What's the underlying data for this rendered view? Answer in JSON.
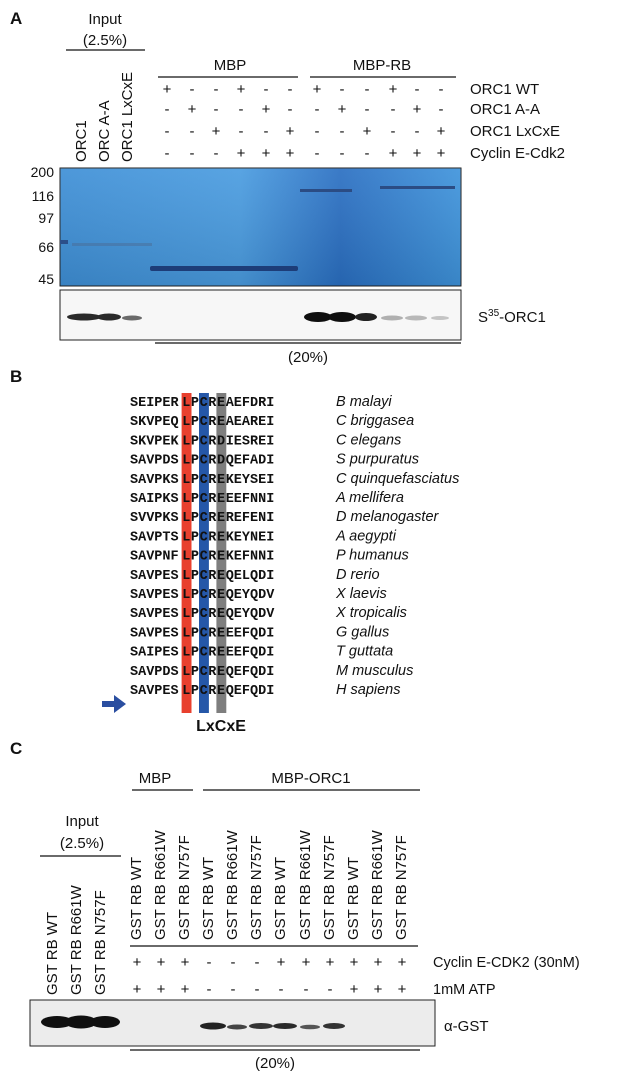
{
  "panelA": {
    "panel_label": "A",
    "input_label": "Input",
    "input_pct": "(2.5%)",
    "lanes_input": [
      "ORC1",
      "ORC A-A",
      "ORC1 LxCxE"
    ],
    "group_mbp": "MBP",
    "group_mbp_rb": "MBP-RB",
    "row_labels": [
      "ORC1 WT",
      "ORC1 A-A",
      "ORC1 LxCxE",
      "Cyclin E-Cdk2"
    ],
    "signs": [
      [
        "+",
        "-",
        "-",
        "+",
        "-",
        "-",
        "+",
        "-",
        "-",
        "+",
        "-",
        "-"
      ],
      [
        "-",
        "+",
        "-",
        "-",
        "+",
        "-",
        "-",
        "+",
        "-",
        "-",
        "+",
        "-"
      ],
      [
        "-",
        "-",
        "+",
        "-",
        "-",
        "+",
        "-",
        "-",
        "+",
        "-",
        "-",
        "+"
      ],
      [
        "-",
        "-",
        "-",
        "+",
        "+",
        "+",
        "-",
        "-",
        "-",
        "+",
        "+",
        "+"
      ]
    ],
    "mw_markers": [
      "200",
      "116",
      "97",
      "66",
      "45"
    ],
    "autorad_label_prefix": "S",
    "autorad_label_sup": "35",
    "autorad_label_suffix": "-ORC1",
    "pct_label": "(20%)"
  },
  "panelB": {
    "panel_label": "B",
    "motif_label": "LxCxE",
    "highlight_colors": {
      "L": "#e8402e",
      "C": "#2557a8",
      "E": "#7e7e7e"
    },
    "arrow_color": "#2a4ea0",
    "rows": [
      {
        "pre": "SEIPER",
        "L": "L",
        "x1": "P",
        "C": "C",
        "x2": "R",
        "E": "E",
        "post": "AEFDRI",
        "species": "B malayi"
      },
      {
        "pre": "SKVPEQ",
        "L": "L",
        "x1": "P",
        "C": "C",
        "x2": "R",
        "E": "E",
        "post": "AEAREI",
        "species": "C briggasea"
      },
      {
        "pre": "SKVPEK",
        "L": "L",
        "x1": "P",
        "C": "C",
        "x2": "R",
        "E": "D",
        "post": "IESREI",
        "species": "C elegans"
      },
      {
        "pre": "SAVPDS",
        "L": "L",
        "x1": "P",
        "C": "C",
        "x2": "R",
        "E": "D",
        "post": "QEFADI",
        "species": "S purpuratus"
      },
      {
        "pre": "SAVPKS",
        "L": "L",
        "x1": "P",
        "C": "C",
        "x2": "R",
        "E": "E",
        "post": "KEYSEI",
        "species": "C quinquefasciatus"
      },
      {
        "pre": "SAIPKS",
        "L": "L",
        "x1": "P",
        "C": "C",
        "x2": "R",
        "E": "E",
        "post": "EEFNNI",
        "species": "A mellifera"
      },
      {
        "pre": "SVVPKS",
        "L": "L",
        "x1": "P",
        "C": "C",
        "x2": "R",
        "E": "E",
        "post": "REFENI",
        "species": "D melanogaster"
      },
      {
        "pre": "SAVPTS",
        "L": "L",
        "x1": "P",
        "C": "C",
        "x2": "R",
        "E": "E",
        "post": "KEYNEI",
        "species": "A aegypti"
      },
      {
        "pre": "SAVPNF",
        "L": "L",
        "x1": "P",
        "C": "C",
        "x2": "R",
        "E": "E",
        "post": "KEFNNI",
        "species": "P humanus"
      },
      {
        "pre": "SAVPES",
        "L": "L",
        "x1": "P",
        "C": "C",
        "x2": "R",
        "E": "E",
        "post": "QELQDI",
        "species": "D rerio"
      },
      {
        "pre": "SAVPES",
        "L": "L",
        "x1": "P",
        "C": "C",
        "x2": "R",
        "E": "E",
        "post": "QEYQDV",
        "species": "X laevis"
      },
      {
        "pre": "SAVPES",
        "L": "L",
        "x1": "P",
        "C": "C",
        "x2": "R",
        "E": "E",
        "post": "QEYQDV",
        "species": "X tropicalis"
      },
      {
        "pre": "SAVPES",
        "L": "L",
        "x1": "P",
        "C": "C",
        "x2": "R",
        "E": "E",
        "post": "EEFQDI",
        "species": "G gallus"
      },
      {
        "pre": "SAIPES",
        "L": "L",
        "x1": "P",
        "C": "C",
        "x2": "R",
        "E": "E",
        "post": "EEFQDI",
        "species": "T guttata"
      },
      {
        "pre": "SAVPDS",
        "L": "L",
        "x1": "P",
        "C": "C",
        "x2": "R",
        "E": "E",
        "post": "QEFQDI",
        "species": "M musculus"
      },
      {
        "pre": "SAVPES",
        "L": "L",
        "x1": "P",
        "C": "C",
        "x2": "R",
        "E": "E",
        "post": "QEFQDI",
        "species": "H sapiens"
      }
    ]
  },
  "panelC": {
    "panel_label": "C",
    "input_label": "Input",
    "input_pct": "(2.5%)",
    "group_mbp": "MBP",
    "group_mbp_orc1": "MBP-ORC1",
    "input_lanes": [
      "GST RB WT",
      "GST RB R661W",
      "GST RB N757F"
    ],
    "lanes": [
      "GST RB WT",
      "GST RB R661W",
      "GST RB N757F",
      "GST RB WT",
      "GST RB R661W",
      "GST RB N757F",
      "GST RB WT",
      "GST RB R661W",
      "GST RB N757F",
      "GST RB WT",
      "GST RB R661W",
      "GST RB N757F"
    ],
    "row_labels": [
      "Cyclin E-CDK2 (30nM)",
      "1mM ATP"
    ],
    "signs": [
      [
        "+",
        "+",
        "+",
        "-",
        "-",
        "-",
        "+",
        "+",
        "+",
        "+",
        "+",
        "+"
      ],
      [
        "+",
        "+",
        "+",
        "-",
        "-",
        "-",
        "-",
        "-",
        "-",
        "+",
        "+",
        "+"
      ]
    ],
    "blot_label": "α-GST",
    "pct_label": "(20%)"
  }
}
